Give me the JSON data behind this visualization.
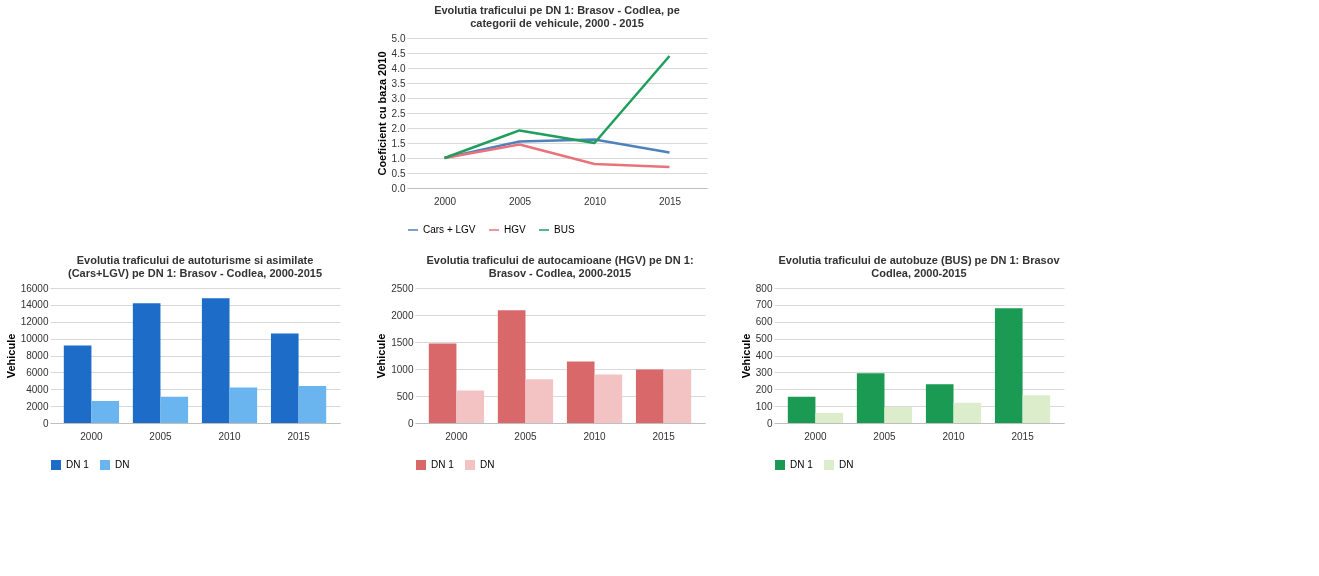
{
  "chart_data": [
    {
      "type": "line",
      "title": "Evolutia traficului pe DN 1: Brasov - Codlea, pe\ncategorii de vehicule, 2000 - 2015",
      "ylabel": "Coeficient cu baza 2010",
      "categories": [
        "2000",
        "2005",
        "2010",
        "2015"
      ],
      "ylim": [
        0,
        5
      ],
      "yticks": [
        {
          "value": 0,
          "label": "0.0"
        },
        {
          "value": 0.5,
          "label": "0.5"
        },
        {
          "value": 1,
          "label": "1.0"
        },
        {
          "value": 1.5,
          "label": "1.5"
        },
        {
          "value": 2,
          "label": "2.0"
        },
        {
          "value": 2.5,
          "label": "2.5"
        },
        {
          "value": 3,
          "label": "3.0"
        },
        {
          "value": 3.5,
          "label": "3.5"
        },
        {
          "value": 4,
          "label": "4.0"
        },
        {
          "value": 4.5,
          "label": "4.5"
        },
        {
          "value": 5,
          "label": "5.0"
        }
      ],
      "grid": "y",
      "legend": "bottom",
      "marker": "none",
      "line_style": "solid",
      "series": [
        {
          "name": "Cars + LGV",
          "color": "#4f81bd",
          "values": [
            1.0,
            1.55,
            1.62,
            1.18
          ]
        },
        {
          "name": "HGV",
          "color": "#e8737a",
          "values": [
            1.0,
            1.45,
            0.8,
            0.7
          ]
        },
        {
          "name": "BUS",
          "color": "#1f9e5c",
          "values": [
            1.0,
            1.92,
            1.5,
            4.4
          ]
        }
      ]
    },
    {
      "type": "bar",
      "title": "Evolutia traficului de autoturisme si asimilate\n(Cars+LGV) pe DN 1: Brasov - Codlea, 2000-2015",
      "ylabel": "Vehicule",
      "categories": [
        "2000",
        "2005",
        "2010",
        "2015"
      ],
      "ylim": [
        0,
        16000
      ],
      "yticks": [
        0,
        2000,
        4000,
        6000,
        8000,
        10000,
        12000,
        14000,
        16000
      ],
      "grid": "y",
      "legend": "bottom",
      "series": [
        {
          "name": "DN 1",
          "color": "#1c6cc8",
          "values": [
            9200,
            14200,
            14800,
            10600
          ]
        },
        {
          "name": "DN",
          "color": "#6ab4f0",
          "values": [
            2600,
            3100,
            4200,
            4400
          ]
        }
      ]
    },
    {
      "type": "bar",
      "title": "Evolutia traficului de autocamioane (HGV) pe DN 1:\nBrasov - Codlea, 2000-2015",
      "ylabel": "Vehicule",
      "categories": [
        "2000",
        "2005",
        "2010",
        "2015"
      ],
      "ylim": [
        0,
        2500
      ],
      "yticks": [
        0,
        500,
        1000,
        1500,
        2000,
        2500
      ],
      "grid": "y",
      "legend": "bottom",
      "series": [
        {
          "name": "DN 1",
          "color": "#d9686b",
          "values": [
            1470,
            2090,
            1140,
            990
          ]
        },
        {
          "name": "DN",
          "color": "#f3c3c3",
          "values": [
            600,
            810,
            900,
            980
          ]
        }
      ]
    },
    {
      "type": "bar",
      "title": "Evolutia traficului de autobuze (BUS) pe DN 1: Brasov\nCodlea, 2000-2015",
      "ylabel": "Vehicule",
      "categories": [
        "2000",
        "2005",
        "2010",
        "2015"
      ],
      "ylim": [
        0,
        800
      ],
      "yticks": [
        0,
        100,
        200,
        300,
        400,
        500,
        600,
        700,
        800
      ],
      "grid": "y",
      "legend": "bottom",
      "series": [
        {
          "name": "DN 1",
          "color": "#1a9a52",
          "values": [
            155,
            295,
            230,
            680
          ]
        },
        {
          "name": "DN",
          "color": "#dcedcc",
          "values": [
            60,
            95,
            120,
            165
          ]
        }
      ]
    }
  ]
}
